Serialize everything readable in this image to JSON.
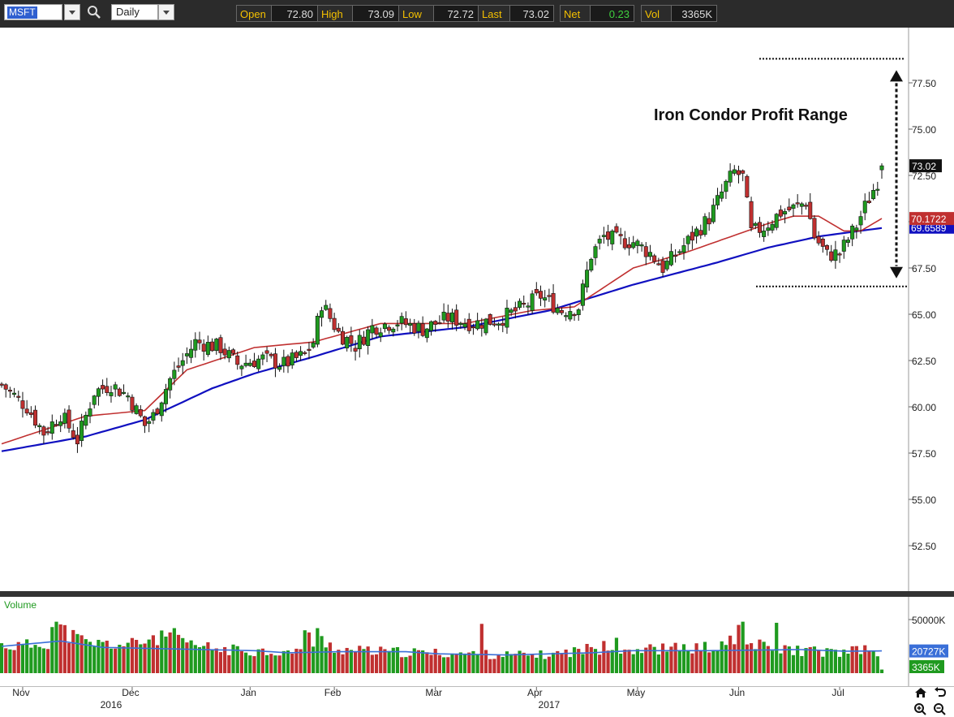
{
  "toolbar": {
    "symbol": "MSFT",
    "interval": "Daily",
    "quote": [
      {
        "label": "Open",
        "value": "72.80"
      },
      {
        "label": "High",
        "value": "73.09"
      },
      {
        "label": "Low",
        "value": "72.72"
      },
      {
        "label": "Last",
        "value": "73.02"
      },
      {
        "label": "Net",
        "value": "0.23"
      },
      {
        "label": "Vol",
        "value": "3365K"
      }
    ],
    "icons": [
      "search-icon",
      "chevron-down-icon"
    ]
  },
  "chart_data": [
    {
      "type": "candlestick",
      "title": "",
      "annotation": "Iron Condor Profit Range",
      "ylim": [
        50.5,
        80.5
      ],
      "yticks": [
        "77.50",
        "75.00",
        "72.50",
        "70.00",
        "67.50",
        "65.00",
        "62.50",
        "60.00",
        "57.50",
        "55.00",
        "52.50"
      ],
      "ytick_values": [
        77.5,
        75.0,
        72.5,
        70.0,
        67.5,
        65.0,
        62.5,
        60.0,
        57.5,
        55.0,
        52.5
      ],
      "x_month_labels": [
        "Nov",
        "Dec",
        "Jan",
        "Feb",
        "Mar",
        "Apr",
        "May",
        "Jun",
        "Jul"
      ],
      "x_year_labels": [
        "2016",
        "2017"
      ],
      "profit_range": {
        "upper": 78.8,
        "lower": 66.5
      },
      "last_price_label": "73.02",
      "ma_label": "70.1722",
      "ma_label_hidden_text": "69.6589",
      "colors": {
        "up": "#1f9a1f",
        "down": "#c03030",
        "ma_short": "#c03030",
        "ma_long": "#1010c0",
        "last_badge": "#111111"
      },
      "price_knots": [
        [
          0,
          61.2
        ],
        [
          6,
          60.0
        ],
        [
          10,
          58.6
        ],
        [
          14,
          59.6
        ],
        [
          18,
          58.2
        ],
        [
          22,
          60.8
        ],
        [
          26,
          61.2
        ],
        [
          30,
          60.6
        ],
        [
          34,
          59.0
        ],
        [
          36,
          59.5
        ],
        [
          40,
          61.5
        ],
        [
          46,
          63.5
        ],
        [
          52,
          63.2
        ],
        [
          56,
          62.3
        ],
        [
          62,
          62.6
        ],
        [
          67,
          62.3
        ],
        [
          72,
          62.8
        ],
        [
          74,
          63.5
        ],
        [
          76,
          65.6
        ],
        [
          80,
          64.0
        ],
        [
          84,
          63.3
        ],
        [
          88,
          64.3
        ],
        [
          94,
          64.6
        ],
        [
          100,
          64.2
        ],
        [
          106,
          64.8
        ],
        [
          112,
          64.5
        ],
        [
          118,
          64.7
        ],
        [
          124,
          65.4
        ],
        [
          128,
          66.0
        ],
        [
          133,
          65.2
        ],
        [
          137,
          65.4
        ],
        [
          140,
          68.2
        ],
        [
          143,
          69.2
        ],
        [
          146,
          69.0
        ],
        [
          150,
          68.9
        ],
        [
          154,
          68.3
        ],
        [
          157,
          67.5
        ],
        [
          160,
          68.2
        ],
        [
          164,
          69.2
        ],
        [
          168,
          70.2
        ],
        [
          172,
          72.0
        ],
        [
          174,
          72.7
        ],
        [
          176,
          72.4
        ],
        [
          178,
          69.4
        ],
        [
          181,
          69.7
        ],
        [
          185,
          70.5
        ],
        [
          189,
          70.8
        ],
        [
          191,
          71.1
        ],
        [
          193,
          69.2
        ],
        [
          196,
          68.2
        ],
        [
          199,
          68.3
        ],
        [
          203,
          69.8
        ],
        [
          205,
          70.8
        ],
        [
          208,
          72.2
        ],
        [
          209,
          73.02
        ]
      ],
      "ma_short_knots": [
        [
          0,
          58.0
        ],
        [
          20,
          59.5
        ],
        [
          34,
          59.8
        ],
        [
          44,
          62.0
        ],
        [
          60,
          63.2
        ],
        [
          74,
          63.5
        ],
        [
          90,
          64.5
        ],
        [
          110,
          64.5
        ],
        [
          126,
          65.2
        ],
        [
          136,
          65.4
        ],
        [
          150,
          67.5
        ],
        [
          162,
          68.3
        ],
        [
          172,
          69.1
        ],
        [
          182,
          69.9
        ],
        [
          188,
          70.3
        ],
        [
          194,
          70.3
        ],
        [
          200,
          69.5
        ],
        [
          204,
          69.5
        ],
        [
          209,
          70.17
        ]
      ],
      "ma_long_knots": [
        [
          0,
          57.6
        ],
        [
          20,
          58.4
        ],
        [
          34,
          59.3
        ],
        [
          50,
          61.0
        ],
        [
          60,
          61.8
        ],
        [
          74,
          62.7
        ],
        [
          90,
          63.8
        ],
        [
          110,
          64.3
        ],
        [
          130,
          65.2
        ],
        [
          150,
          66.6
        ],
        [
          170,
          67.8
        ],
        [
          182,
          68.6
        ],
        [
          194,
          69.2
        ],
        [
          209,
          69.66
        ]
      ]
    },
    {
      "type": "bar",
      "title": "Volume",
      "yticks": [
        "50000K"
      ],
      "ytick_values": [
        50000
      ],
      "ylim": [
        0,
        60000
      ],
      "avg_label": "20727K",
      "last_label": "3365K",
      "volume_knots": [
        [
          0,
          26000
        ],
        [
          5,
          25000
        ],
        [
          12,
          30000
        ],
        [
          13,
          43000
        ],
        [
          16,
          36000
        ],
        [
          20,
          28000
        ],
        [
          30,
          26000
        ],
        [
          34,
          30000
        ],
        [
          36,
          34000
        ],
        [
          45,
          26000
        ],
        [
          52,
          22000
        ],
        [
          60,
          21000
        ],
        [
          65,
          20000
        ],
        [
          70,
          19000
        ],
        [
          76,
          30000
        ],
        [
          80,
          22000
        ],
        [
          90,
          20000
        ],
        [
          100,
          19000
        ],
        [
          110,
          18000
        ],
        [
          120,
          17000
        ],
        [
          130,
          17000
        ],
        [
          140,
          23000
        ],
        [
          150,
          22000
        ],
        [
          160,
          23000
        ],
        [
          170,
          24000
        ],
        [
          178,
          27000
        ],
        [
          182,
          24000
        ],
        [
          190,
          21000
        ],
        [
          200,
          19000
        ],
        [
          205,
          22000
        ],
        [
          208,
          20000
        ],
        [
          209,
          3365
        ]
      ],
      "spikes": [
        [
          12,
          43000
        ],
        [
          13,
          48000
        ],
        [
          40,
          38000
        ],
        [
          41,
          42000
        ],
        [
          72,
          40000
        ],
        [
          73,
          38000
        ],
        [
          75,
          42000
        ],
        [
          114,
          46000
        ],
        [
          143,
          30000
        ],
        [
          146,
          33000
        ],
        [
          173,
          35000
        ],
        [
          175,
          45000
        ],
        [
          176,
          48000
        ],
        [
          184,
          47000
        ]
      ],
      "avg_knots": [
        [
          0,
          25000
        ],
        [
          14,
          30000
        ],
        [
          24,
          24000
        ],
        [
          36,
          23000
        ],
        [
          60,
          21000
        ],
        [
          68,
          19000
        ],
        [
          80,
          20000
        ],
        [
          96,
          20000
        ],
        [
          104,
          18000
        ],
        [
          120,
          17000
        ],
        [
          140,
          19000
        ],
        [
          150,
          21000
        ],
        [
          168,
          21000
        ],
        [
          190,
          22000
        ],
        [
          200,
          20500
        ],
        [
          209,
          20727
        ]
      ]
    }
  ]
}
